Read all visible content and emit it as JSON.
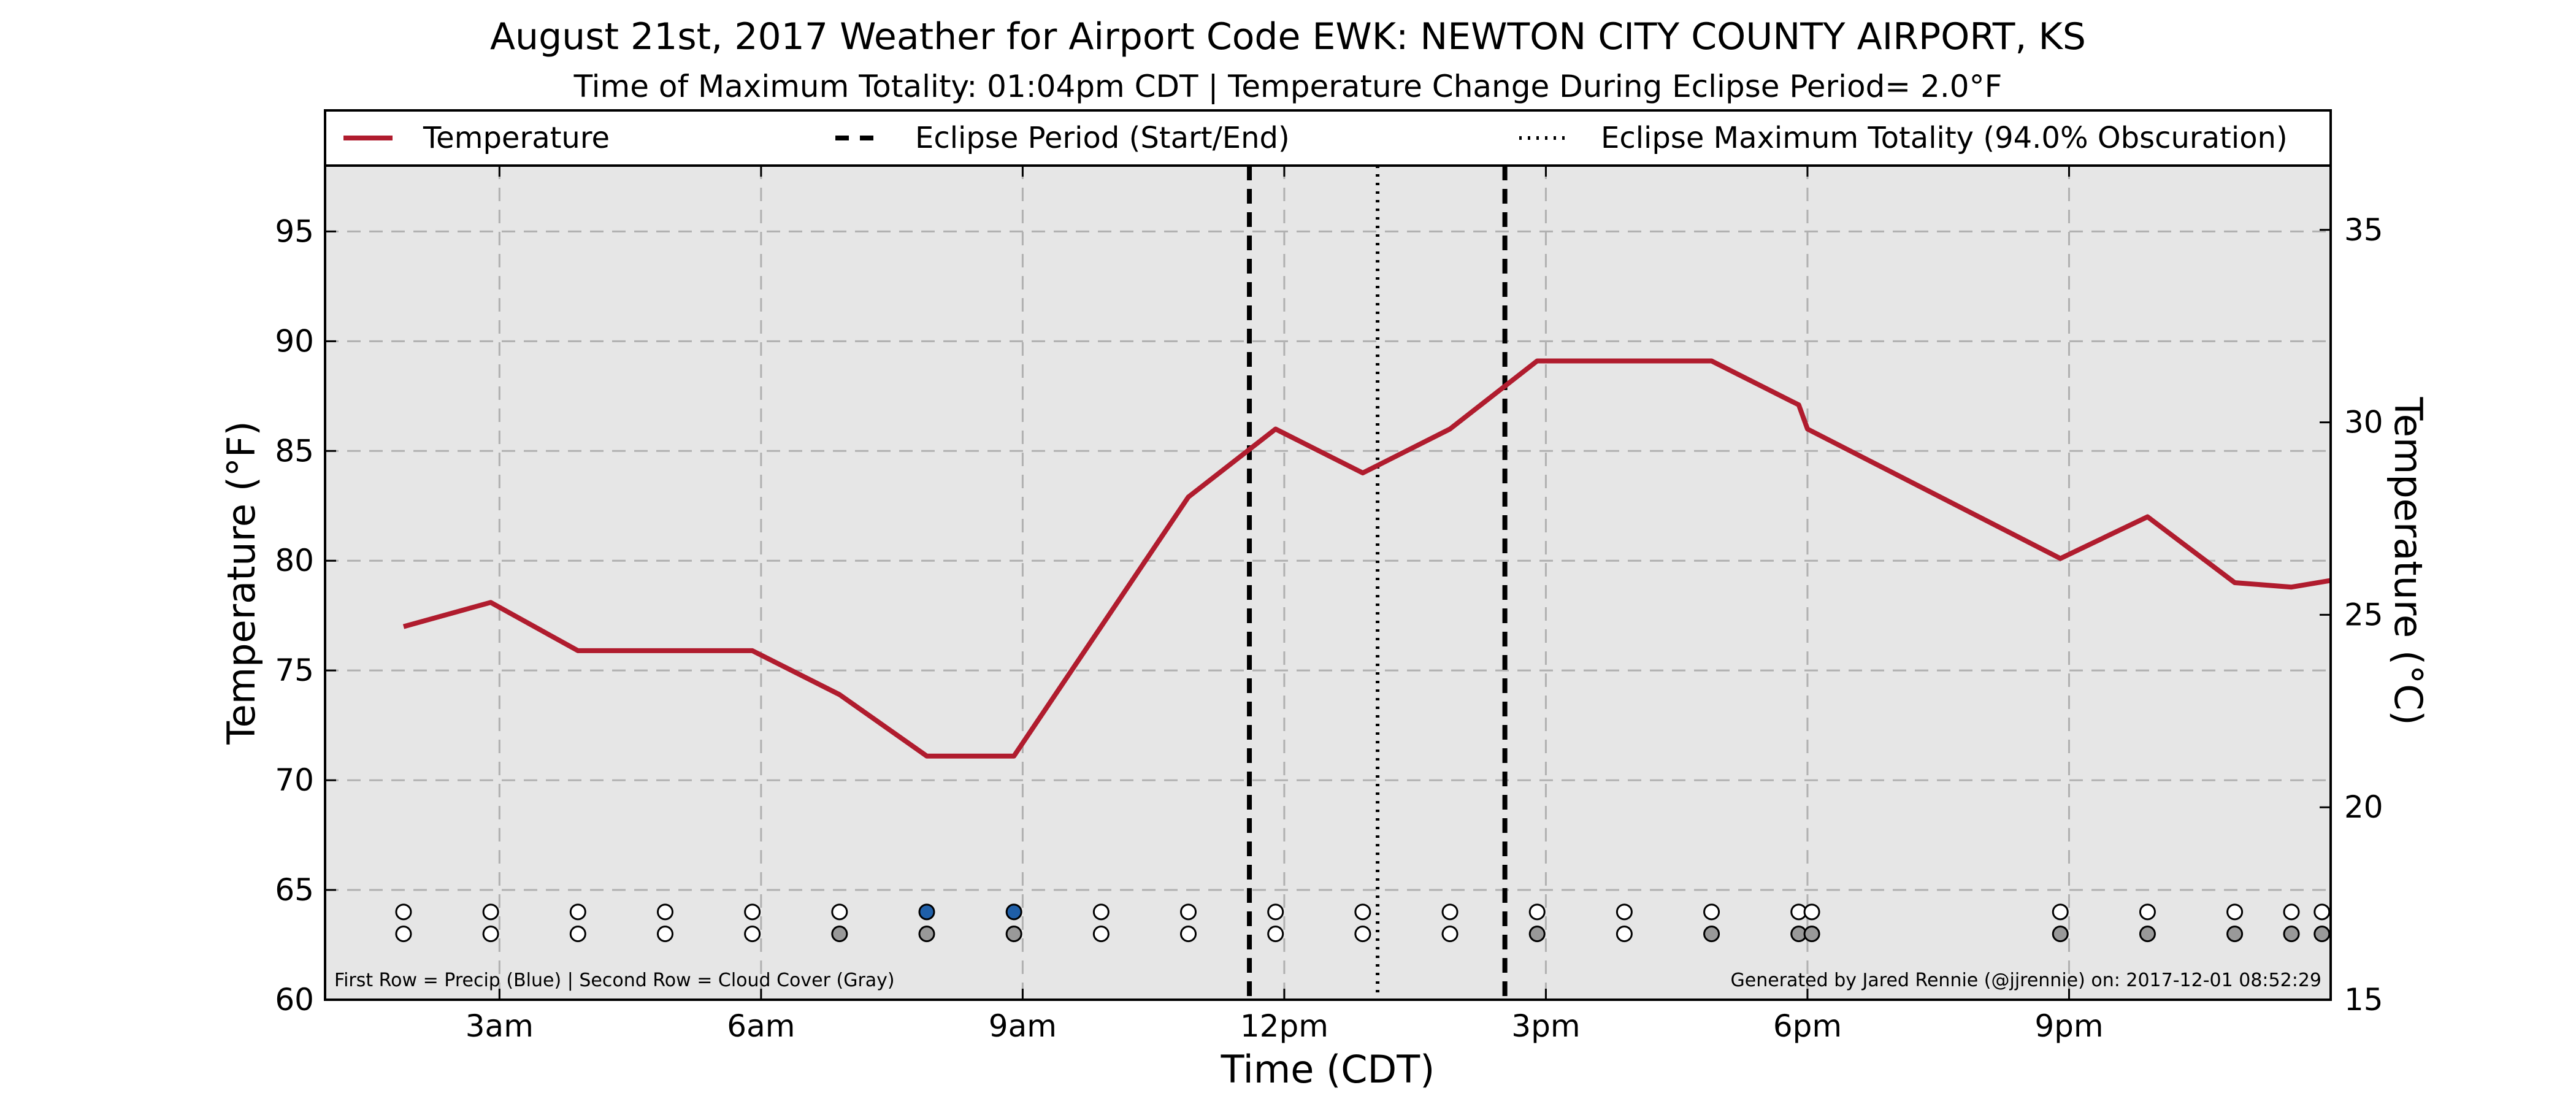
{
  "chart_data": {
    "type": "line",
    "title": "August 21st, 2017 Weather for Airport Code EWK: NEWTON CITY COUNTY AIRPORT, KS",
    "subtitle": "Time of Maximum Totality: 01:04pm CDT | Temperature Change During Eclipse Period= 2.0°F",
    "xlabel": "Time (CDT)",
    "ylabel": "Temperature (°F)",
    "ylabel_right": "Temperature (°C)",
    "xlim": [
      1,
      24
    ],
    "ylim": [
      60,
      98
    ],
    "ylim_right": [
      15,
      36.67
    ],
    "grid": true,
    "legend_position": "top",
    "x_ticks": [
      {
        "x": 3,
        "label": "3am"
      },
      {
        "x": 6,
        "label": "6am"
      },
      {
        "x": 9,
        "label": "9am"
      },
      {
        "x": 12,
        "label": "12pm"
      },
      {
        "x": 15,
        "label": "3pm"
      },
      {
        "x": 18,
        "label": "6pm"
      },
      {
        "x": 21,
        "label": "9pm"
      }
    ],
    "y_ticks": [
      60,
      65,
      70,
      75,
      80,
      85,
      90,
      95
    ],
    "y_ticks_right": [
      15,
      20,
      25,
      30,
      35
    ],
    "series": [
      {
        "name": "Temperature",
        "color": "#b01c2e",
        "x": [
          1.9,
          2.9,
          3.9,
          4.9,
          5.9,
          6.9,
          7.9,
          8.9,
          9.9,
          10.9,
          11.9,
          12.9,
          13.9,
          14.9,
          15.9,
          16.9,
          17.9,
          18.0,
          20.9,
          21.9,
          22.9,
          23.55,
          24.0
        ],
        "y": [
          77,
          78.1,
          75.9,
          75.9,
          75.9,
          73.9,
          71.1,
          71.1,
          77,
          82.9,
          86,
          84,
          86,
          89.1,
          89.1,
          89.1,
          87.1,
          86,
          80.1,
          82,
          79,
          78.8,
          79.1
        ]
      }
    ],
    "eclipse": {
      "start_label": "Eclipse Period (Start/End)",
      "max_label": "Eclipse Maximum Totality (94.0% Obscuration)",
      "start_x": 11.6,
      "end_x": 14.53,
      "max_x": 13.07
    },
    "observations": {
      "x": [
        1.9,
        2.9,
        3.9,
        4.9,
        5.9,
        6.9,
        7.9,
        8.9,
        9.9,
        10.9,
        11.9,
        12.9,
        13.9,
        14.9,
        15.9,
        16.9,
        17.9,
        18.05,
        20.9,
        21.9,
        22.9,
        23.55,
        23.9
      ],
      "precip": [
        "none",
        "none",
        "none",
        "none",
        "none",
        "none",
        "rain",
        "rain",
        "none",
        "none",
        "none",
        "none",
        "none",
        "none",
        "none",
        "none",
        "none",
        "none",
        "none",
        "none",
        "none",
        "none",
        "none"
      ],
      "cloud": [
        "clear",
        "clear",
        "clear",
        "clear",
        "clear",
        "cloudy",
        "cloudy",
        "cloudy",
        "clear",
        "clear",
        "clear",
        "clear",
        "clear",
        "cloudy",
        "clear",
        "cloudy",
        "cloudy",
        "cloudy",
        "cloudy",
        "cloudy",
        "cloudy",
        "cloudy",
        "cloudy"
      ],
      "precip_row_y": 64,
      "cloud_row_y": 63,
      "colors": {
        "rain": "#1f5fa8",
        "cloudy": "#999999",
        "empty": "#ffffff"
      }
    },
    "footnote_left": "First Row = Precip (Blue) | Second Row = Cloud Cover (Gray)",
    "footnote_right": "Generated by Jared Rennie (@jjrennie) on: 2017-12-01 08:52:29"
  }
}
